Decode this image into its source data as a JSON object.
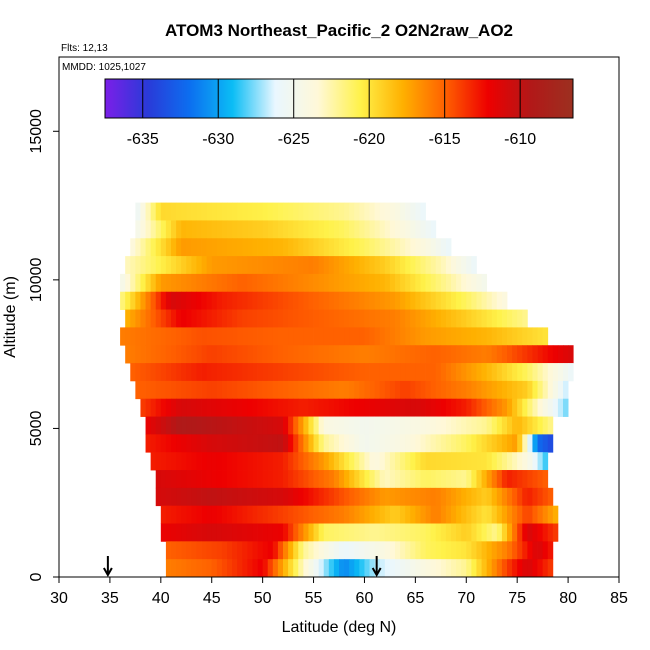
{
  "chart_data": {
    "type": "heatmap",
    "title": "ATOM3 Northeast_Pacific_2 O2N2raw_AO2",
    "flights_label": "Flts: 12,13",
    "dates_label": "MMDD: 1025,1027",
    "xlabel": "Latitude (deg N)",
    "ylabel": "Altitude (m)",
    "xlim": [
      30,
      85
    ],
    "ylim": [
      0,
      17500
    ],
    "x_ticks": [
      30,
      35,
      40,
      45,
      50,
      55,
      60,
      65,
      70,
      75,
      80,
      85
    ],
    "y_ticks": [
      0,
      5000,
      10000,
      15000
    ],
    "colorbar": {
      "range": [
        -637.5,
        -606.5
      ],
      "ticks": [
        -635,
        -630,
        -625,
        -620,
        -615,
        -610
      ],
      "colors": [
        "#7b1fe8",
        "#2a3ad8",
        "#0c6ff0",
        "#0bbdf5",
        "#e9f7ff",
        "#fff8d8",
        "#fff24a",
        "#ffb000",
        "#ff6000",
        "#ee0000",
        "#b21818",
        "#9c3020"
      ]
    },
    "arrow_latitudes": [
      34.8,
      61.2
    ],
    "altitude_bands": [
      {
        "alt": 12300,
        "lat_min": 37.5,
        "lat_max": 66.0,
        "values": [
          [
            37.5,
            -626
          ],
          [
            40,
            -619.5
          ],
          [
            50,
            -620.5
          ],
          [
            58,
            -622
          ],
          [
            63,
            -624
          ],
          [
            66,
            -626
          ]
        ]
      },
      {
        "alt": 11700,
        "lat_min": 37.5,
        "lat_max": 67.0,
        "values": [
          [
            37.5,
            -625
          ],
          [
            42,
            -618
          ],
          [
            50,
            -619
          ],
          [
            58,
            -621
          ],
          [
            64,
            -624
          ],
          [
            67,
            -626
          ]
        ]
      },
      {
        "alt": 11100,
        "lat_min": 37.0,
        "lat_max": 68.5,
        "values": [
          [
            37,
            -624
          ],
          [
            42,
            -617
          ],
          [
            52,
            -618
          ],
          [
            60,
            -621
          ],
          [
            66,
            -624
          ],
          [
            68.5,
            -626
          ]
        ]
      },
      {
        "alt": 10500,
        "lat_min": 36.5,
        "lat_max": 71.0,
        "values": [
          [
            36.5,
            -623
          ],
          [
            45,
            -617
          ],
          [
            55,
            -616
          ],
          [
            62,
            -619
          ],
          [
            68,
            -623
          ],
          [
            71,
            -626
          ]
        ]
      },
      {
        "alt": 9900,
        "lat_min": 36.0,
        "lat_max": 72.0,
        "values": [
          [
            36,
            -625
          ],
          [
            40,
            -617
          ],
          [
            48,
            -615
          ],
          [
            55,
            -616.5
          ],
          [
            62,
            -618
          ],
          [
            68,
            -622
          ],
          [
            72,
            -625
          ]
        ]
      },
      {
        "alt": 9300,
        "lat_min": 36.0,
        "lat_max": 74.0,
        "values": [
          [
            36,
            -622
          ],
          [
            41,
            -611
          ],
          [
            46,
            -613
          ],
          [
            55,
            -615
          ],
          [
            63,
            -617
          ],
          [
            70,
            -621
          ],
          [
            74,
            -624
          ]
        ]
      },
      {
        "alt": 8700,
        "lat_min": 36.5,
        "lat_max": 76.0,
        "values": [
          [
            36.5,
            -618
          ],
          [
            42,
            -612
          ],
          [
            48,
            -614
          ],
          [
            56,
            -615
          ],
          [
            63,
            -616
          ],
          [
            70,
            -619
          ],
          [
            76,
            -622
          ]
        ]
      },
      {
        "alt": 8100,
        "lat_min": 36.0,
        "lat_max": 78.0,
        "values": [
          [
            36,
            -616
          ],
          [
            44,
            -614.5
          ],
          [
            52,
            -615
          ],
          [
            60,
            -615
          ],
          [
            66,
            -617
          ],
          [
            72,
            -618
          ],
          [
            78,
            -620
          ]
        ]
      },
      {
        "alt": 7500,
        "lat_min": 36.5,
        "lat_max": 80.5,
        "values": [
          [
            36.5,
            -616
          ],
          [
            45,
            -614
          ],
          [
            52,
            -615
          ],
          [
            60,
            -616
          ],
          [
            67,
            -615
          ],
          [
            72,
            -616
          ],
          [
            77,
            -613
          ],
          [
            80.5,
            -611
          ]
        ]
      },
      {
        "alt": 6900,
        "lat_min": 37.0,
        "lat_max": 80.5,
        "values": [
          [
            37,
            -615
          ],
          [
            44,
            -613
          ],
          [
            52,
            -614
          ],
          [
            60,
            -615
          ],
          [
            67,
            -615
          ],
          [
            72,
            -618
          ],
          [
            76,
            -621
          ],
          [
            80.5,
            -626
          ]
        ]
      },
      {
        "alt": 6300,
        "lat_min": 37.5,
        "lat_max": 80.0,
        "values": [
          [
            37.5,
            -615
          ],
          [
            45,
            -614
          ],
          [
            52,
            -615
          ],
          [
            58,
            -616
          ],
          [
            64,
            -614
          ],
          [
            70,
            -616
          ],
          [
            76,
            -619
          ],
          [
            80,
            -627
          ]
        ]
      },
      {
        "alt": 5700,
        "lat_min": 38.0,
        "lat_max": 80.0,
        "values": [
          [
            38,
            -614
          ],
          [
            42,
            -611
          ],
          [
            48,
            -612
          ],
          [
            54,
            -613
          ],
          [
            60,
            -612
          ],
          [
            65,
            -611
          ],
          [
            70,
            -613
          ],
          [
            74,
            -617
          ],
          [
            77,
            -623
          ],
          [
            80,
            -628
          ]
        ]
      },
      {
        "alt": 5100,
        "lat_min": 38.5,
        "lat_max": 78.5,
        "values": [
          [
            38.5,
            -612
          ],
          [
            42,
            -609
          ],
          [
            47,
            -610
          ],
          [
            52,
            -611
          ],
          [
            56,
            -624
          ],
          [
            60,
            -625
          ],
          [
            66,
            -624
          ],
          [
            72,
            -622
          ],
          [
            75,
            -618
          ],
          [
            78.5,
            -622
          ]
        ]
      },
      {
        "alt": 4500,
        "lat_min": 38.5,
        "lat_max": 78.5,
        "values": [
          [
            38.5,
            -613
          ],
          [
            45,
            -611
          ],
          [
            52,
            -610
          ],
          [
            56,
            -622
          ],
          [
            60,
            -625
          ],
          [
            64,
            -624
          ],
          [
            70,
            -621
          ],
          [
            75,
            -617
          ],
          [
            77,
            -632
          ],
          [
            78.5,
            -634
          ]
        ]
      },
      {
        "alt": 3900,
        "lat_min": 39.0,
        "lat_max": 78.0,
        "values": [
          [
            39,
            -613
          ],
          [
            45,
            -612
          ],
          [
            52,
            -613
          ],
          [
            56,
            -617
          ],
          [
            61,
            -624
          ],
          [
            66,
            -619.5
          ],
          [
            72,
            -620
          ],
          [
            76,
            -624
          ],
          [
            78,
            -629
          ]
        ]
      },
      {
        "alt": 3300,
        "lat_min": 39.5,
        "lat_max": 78.0,
        "values": [
          [
            39.5,
            -611
          ],
          [
            45,
            -612
          ],
          [
            52,
            -613
          ],
          [
            57,
            -616
          ],
          [
            62,
            -623
          ],
          [
            66,
            -621
          ],
          [
            70,
            -622
          ],
          [
            74,
            -613
          ],
          [
            78,
            -615
          ]
        ]
      },
      {
        "alt": 2700,
        "lat_min": 39.5,
        "lat_max": 78.5,
        "values": [
          [
            39.5,
            -611
          ],
          [
            45,
            -610
          ],
          [
            52,
            -611
          ],
          [
            57,
            -614
          ],
          [
            62,
            -617
          ],
          [
            67,
            -616
          ],
          [
            72,
            -619
          ],
          [
            76,
            -613
          ],
          [
            78.5,
            -615
          ]
        ]
      },
      {
        "alt": 2100,
        "lat_min": 40.0,
        "lat_max": 79.0,
        "values": [
          [
            40,
            -613
          ],
          [
            45,
            -612
          ],
          [
            52,
            -614
          ],
          [
            58,
            -616
          ],
          [
            63,
            -619
          ],
          [
            67,
            -616
          ],
          [
            72,
            -620
          ],
          [
            76,
            -614
          ],
          [
            79,
            -618
          ]
        ]
      },
      {
        "alt": 1500,
        "lat_min": 40.0,
        "lat_max": 79.0,
        "values": [
          [
            40,
            -612
          ],
          [
            45,
            -611
          ],
          [
            52,
            -612
          ],
          [
            56,
            -621
          ],
          [
            61,
            -622
          ],
          [
            66,
            -621
          ],
          [
            70,
            -619
          ],
          [
            73,
            -622
          ],
          [
            76,
            -611
          ],
          [
            79,
            -614
          ]
        ]
      },
      {
        "alt": 900,
        "lat_min": 40.5,
        "lat_max": 78.5,
        "values": [
          [
            40.5,
            -615
          ],
          [
            46,
            -614
          ],
          [
            51,
            -612
          ],
          [
            54,
            -622
          ],
          [
            58,
            -626
          ],
          [
            62,
            -624
          ],
          [
            66,
            -621
          ],
          [
            70,
            -620
          ],
          [
            74,
            -616
          ],
          [
            77,
            -611
          ],
          [
            78.5,
            -613
          ]
        ]
      },
      {
        "alt": 300,
        "lat_min": 40.5,
        "lat_max": 78.5,
        "values": [
          [
            40.5,
            -616
          ],
          [
            45,
            -615
          ],
          [
            50,
            -612
          ],
          [
            54,
            -623
          ],
          [
            58,
            -631
          ],
          [
            61,
            -627
          ],
          [
            66,
            -624
          ],
          [
            70,
            -622
          ],
          [
            74,
            -614
          ],
          [
            76,
            -611
          ],
          [
            78.5,
            -614
          ]
        ]
      }
    ]
  }
}
